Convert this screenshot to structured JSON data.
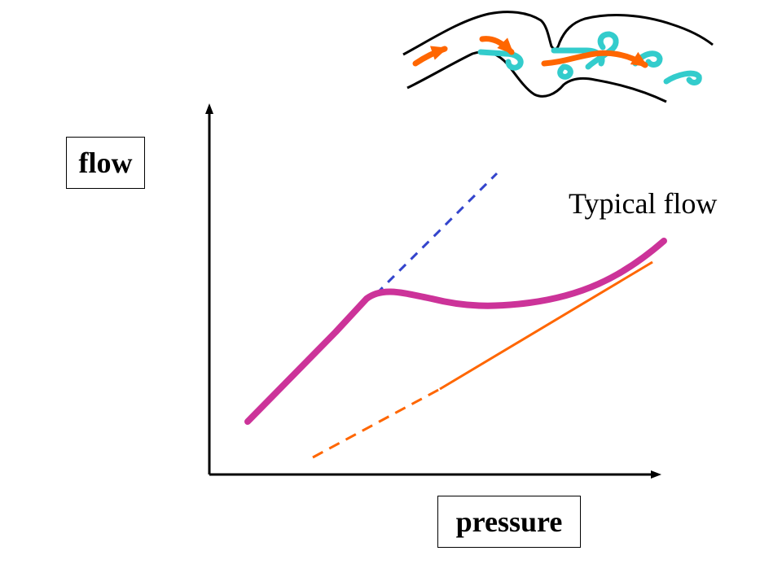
{
  "axes": {
    "y_label": "flow",
    "x_label": "pressure"
  },
  "curve_label": "Typical flow",
  "colors": {
    "curve": "#cc3399",
    "laminar_asymptote": "#3344cc",
    "turbulent_asymptote": "#ff6600",
    "vortex": "#33cccc",
    "flow_arrow": "#ff6600",
    "axis": "#000000",
    "vessel_wall": "#000000"
  },
  "icons": {
    "vessel": "stenotic-vessel-illustration",
    "vortices": "turbulent-eddy-swirls"
  }
}
